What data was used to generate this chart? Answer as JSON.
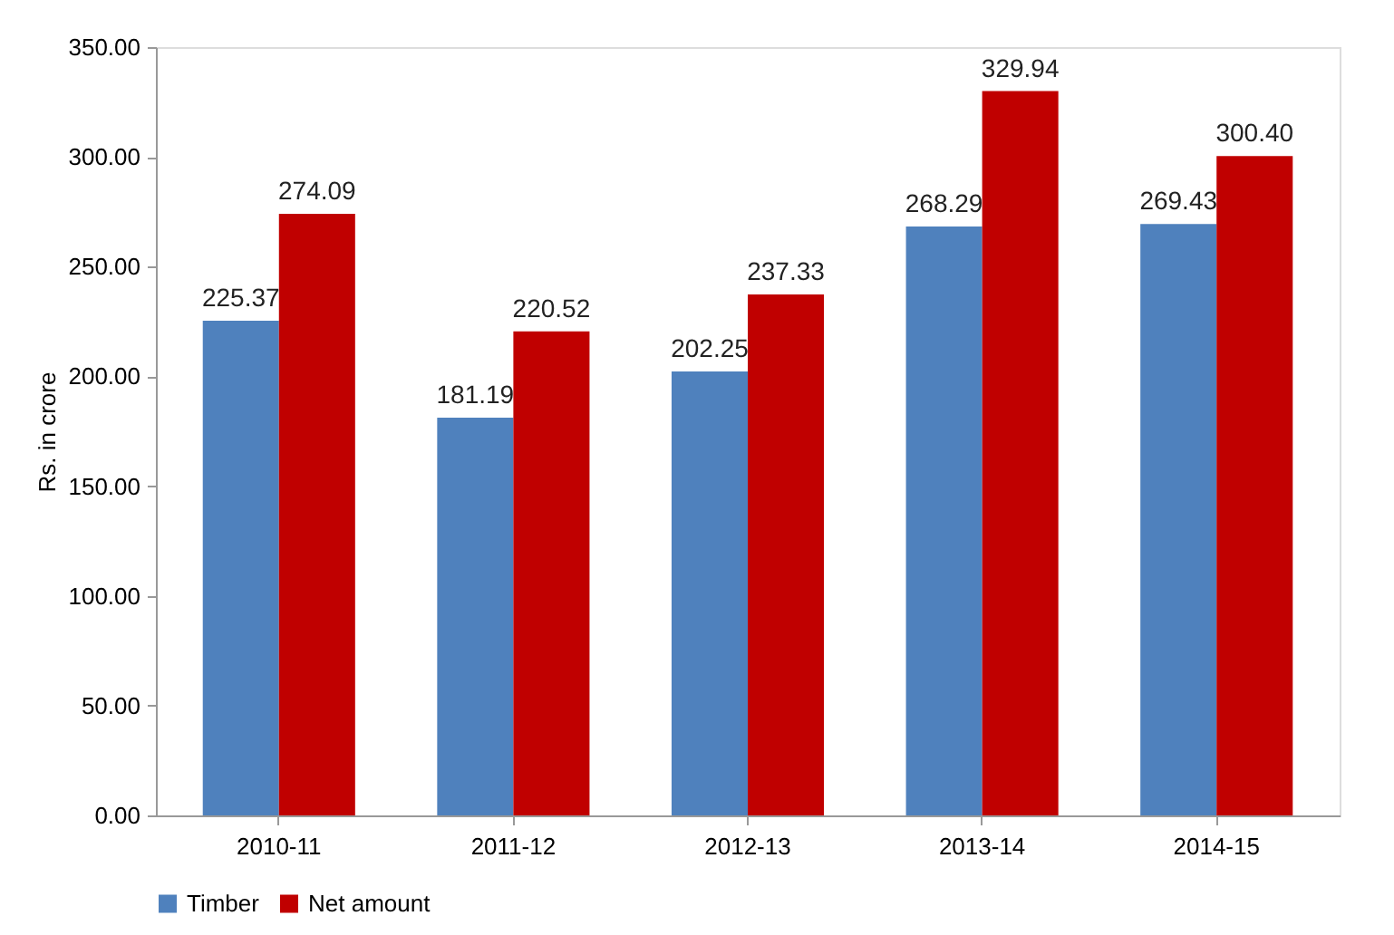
{
  "chart_data": {
    "type": "bar",
    "ylabel": "Rs. in crore",
    "categories": [
      "2010-11",
      "2011-12",
      "2012-13",
      "2013-14",
      "2014-15"
    ],
    "series": [
      {
        "name": "Timber",
        "color": "#4f81bd",
        "values": [
          225.37,
          181.19,
          202.25,
          268.29,
          269.43
        ],
        "value_labels": [
          "225.37",
          "181.19",
          "202.25",
          "268.29",
          "269.43"
        ]
      },
      {
        "name": "Net amount",
        "color": "#c00000",
        "values": [
          274.09,
          220.52,
          237.33,
          329.94,
          300.4
        ],
        "value_labels": [
          "274.09",
          "220.52",
          "237.33",
          "329.94",
          "300.40"
        ]
      }
    ],
    "ylim": [
      0,
      350
    ],
    "yticks": [
      {
        "value": 0,
        "label": "0.00"
      },
      {
        "value": 50,
        "label": "50.00"
      },
      {
        "value": 100,
        "label": "100.00"
      },
      {
        "value": 150,
        "label": "150.00"
      },
      {
        "value": 200,
        "label": "200.00"
      },
      {
        "value": 250,
        "label": "250.00"
      },
      {
        "value": 300,
        "label": "300.00"
      },
      {
        "value": 350,
        "label": "350.00"
      }
    ],
    "grid": false,
    "legend": "bottom"
  }
}
